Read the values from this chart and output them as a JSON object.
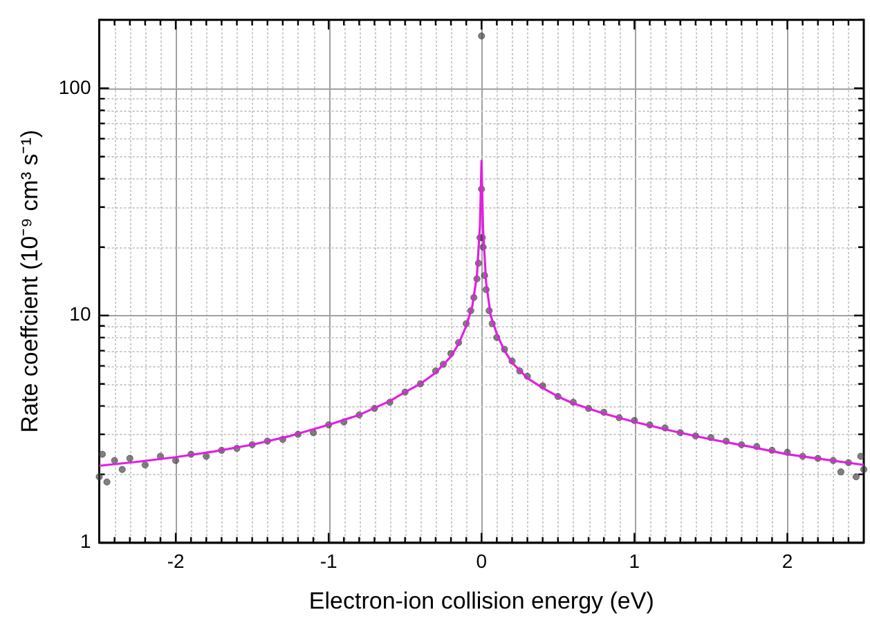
{
  "chart_data": {
    "type": "scatter",
    "xlabel": "Electron-ion collision energy (eV)",
    "ylabel": "Rate coeffcient (10⁻⁹ cm³ s⁻¹)",
    "xlim": [
      -2.5,
      2.5
    ],
    "ylim": [
      1,
      200
    ],
    "log": "y",
    "grid": true,
    "legend": false,
    "xticks": [
      {
        "value": -2.4,
        "label": null
      },
      {
        "value": -2.3,
        "label": null
      },
      {
        "value": -2.2,
        "label": null
      },
      {
        "value": -2.1,
        "label": null
      },
      -2,
      {
        "value": -1.9,
        "label": null
      },
      {
        "value": -1.8,
        "label": null
      },
      {
        "value": -1.7,
        "label": null
      },
      {
        "value": -1.6,
        "label": null
      },
      {
        "value": -1.5,
        "label": null
      },
      {
        "value": -1.4,
        "label": null
      },
      {
        "value": -1.3,
        "label": null
      },
      {
        "value": -1.2,
        "label": null
      },
      {
        "value": -1.1,
        "label": null
      },
      -1,
      {
        "value": -0.9,
        "label": null
      },
      {
        "value": -0.8,
        "label": null
      },
      {
        "value": -0.7,
        "label": null
      },
      {
        "value": -0.6,
        "label": null
      },
      {
        "value": -0.5,
        "label": null
      },
      {
        "value": -0.4,
        "label": null
      },
      {
        "value": -0.3,
        "label": null
      },
      {
        "value": -0.2,
        "label": null
      },
      {
        "value": -0.1,
        "label": null
      },
      0,
      {
        "value": 0.1,
        "label": null
      },
      {
        "value": 0.2,
        "label": null
      },
      {
        "value": 0.3,
        "label": null
      },
      {
        "value": 0.4,
        "label": null
      },
      {
        "value": 0.5,
        "label": null
      },
      {
        "value": 0.6,
        "label": null
      },
      {
        "value": 0.7,
        "label": null
      },
      {
        "value": 0.8,
        "label": null
      },
      {
        "value": 0.9,
        "label": null
      },
      1,
      {
        "value": 1.1,
        "label": null
      },
      {
        "value": 1.2,
        "label": null
      },
      {
        "value": 1.3,
        "label": null
      },
      {
        "value": 1.4,
        "label": null
      },
      {
        "value": 1.5,
        "label": null
      },
      {
        "value": 1.6,
        "label": null
      },
      {
        "value": 1.7,
        "label": null
      },
      {
        "value": 1.8,
        "label": null
      },
      {
        "value": 1.9,
        "label": null
      },
      2,
      {
        "value": 2.1,
        "label": null
      },
      {
        "value": 2.2,
        "label": null
      },
      {
        "value": 2.3,
        "label": null
      },
      {
        "value": 2.4,
        "label": null
      }
    ],
    "yticks": [
      1,
      {
        "value": 2,
        "label": null
      },
      {
        "value": 3,
        "label": null
      },
      {
        "value": 4,
        "label": null
      },
      {
        "value": 5,
        "label": null
      },
      {
        "value": 6,
        "label": null
      },
      {
        "value": 7,
        "label": null
      },
      {
        "value": 8,
        "label": null
      },
      {
        "value": 9,
        "label": null
      },
      10,
      {
        "value": 20,
        "label": null
      },
      {
        "value": 30,
        "label": null
      },
      {
        "value": 40,
        "label": null
      },
      {
        "value": 50,
        "label": null
      },
      {
        "value": 60,
        "label": null
      },
      {
        "value": 70,
        "label": null
      },
      {
        "value": 80,
        "label": null
      },
      {
        "value": 90,
        "label": null
      },
      100,
      {
        "value": 200,
        "label": null
      }
    ],
    "series": [
      {
        "color": "#3c3c3c",
        "marker": "circle",
        "x": [
          -2.5,
          -2.48,
          -2.45,
          -2.4,
          -2.35,
          -2.3,
          -2.2,
          -2.1,
          -2.0,
          -1.9,
          -1.8,
          -1.7,
          -1.6,
          -1.5,
          -1.4,
          -1.3,
          -1.2,
          -1.1,
          -1.0,
          -0.9,
          -0.8,
          -0.7,
          -0.6,
          -0.5,
          -0.4,
          -0.3,
          -0.25,
          -0.2,
          -0.15,
          -0.1,
          -0.07,
          -0.05,
          -0.03,
          -0.02,
          -0.01,
          0,
          0,
          0.005,
          0.01,
          0.02,
          0.03,
          0.05,
          0.07,
          0.1,
          0.15,
          0.2,
          0.25,
          0.3,
          0.4,
          0.5,
          0.6,
          0.7,
          0.8,
          0.9,
          1.0,
          1.1,
          1.2,
          1.3,
          1.4,
          1.5,
          1.6,
          1.7,
          1.8,
          1.9,
          2.0,
          2.1,
          2.2,
          2.3,
          2.35,
          2.4,
          2.45,
          2.48,
          2.5
        ],
        "values": [
          1.95,
          2.45,
          1.85,
          2.3,
          2.1,
          2.35,
          2.2,
          2.4,
          2.3,
          2.45,
          2.4,
          2.55,
          2.6,
          2.7,
          2.8,
          2.85,
          3.0,
          3.05,
          3.3,
          3.4,
          3.65,
          3.9,
          4.15,
          4.6,
          5.0,
          5.7,
          6.1,
          6.8,
          7.6,
          9.2,
          10.5,
          12,
          14.5,
          17,
          22,
          170,
          36,
          22,
          20,
          15,
          13,
          10.5,
          9.2,
          8.0,
          7.1,
          6.3,
          5.7,
          5.4,
          4.9,
          4.4,
          4.15,
          3.9,
          3.75,
          3.55,
          3.45,
          3.3,
          3.2,
          3.05,
          2.95,
          2.9,
          2.8,
          2.7,
          2.65,
          2.55,
          2.5,
          2.4,
          2.35,
          2.3,
          2.05,
          2.25,
          1.95,
          2.4,
          2.1
        ]
      },
      {
        "type": "line",
        "color": "#e020e0",
        "marker": "none",
        "x": [
          -2.5,
          -2.25,
          -2,
          -1.75,
          -1.5,
          -1.25,
          -1,
          -0.8,
          -0.6,
          -0.5,
          -0.4,
          -0.3,
          -0.2,
          -0.15,
          -0.1,
          -0.06,
          -0.03,
          -0.01,
          0,
          0.01,
          0.03,
          0.06,
          0.1,
          0.15,
          0.2,
          0.3,
          0.4,
          0.5,
          0.6,
          0.8,
          1,
          1.25,
          1.5,
          1.75,
          2,
          2.25,
          2.5
        ],
        "values": [
          2.18,
          2.27,
          2.38,
          2.52,
          2.7,
          2.95,
          3.3,
          3.65,
          4.2,
          4.6,
          5.0,
          5.6,
          6.6,
          7.5,
          9,
          11,
          15,
          25,
          48,
          24,
          14,
          10,
          8.3,
          7.0,
          6.2,
          5.3,
          4.8,
          4.4,
          4.1,
          3.7,
          3.4,
          3.1,
          2.85,
          2.65,
          2.45,
          2.32,
          2.2
        ]
      }
    ]
  }
}
